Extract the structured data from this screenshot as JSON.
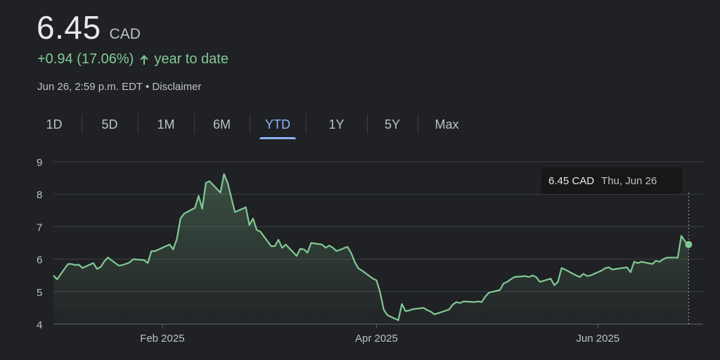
{
  "quote": {
    "price": "6.45",
    "currency": "CAD",
    "change": "+0.94 (17.06%)",
    "period_label": "year to date",
    "timestamp": "Jun 26, 2:59 p.m. EDT",
    "separator": "•",
    "disclaimer": "Disclaimer"
  },
  "tabs": [
    {
      "label": "1D"
    },
    {
      "label": "5D"
    },
    {
      "label": "1M"
    },
    {
      "label": "6M"
    },
    {
      "label": "YTD",
      "active": true
    },
    {
      "label": "1Y"
    },
    {
      "label": "5Y"
    },
    {
      "label": "Max"
    }
  ],
  "tooltip": {
    "value": "6.45 CAD",
    "date": "Thu, Jun 26"
  },
  "colors": {
    "background": "#202124",
    "line": "#81c995",
    "positive": "#81c995",
    "grid": "#3c4043",
    "active_tab": "#8ab4f8"
  },
  "chart_data": {
    "type": "area",
    "title": "",
    "xlabel": "",
    "ylabel": "",
    "ylim": [
      4,
      9
    ],
    "yticks": [
      4,
      5,
      6,
      7,
      8,
      9
    ],
    "x_domain": [
      "2025-01-02",
      "2025-06-30"
    ],
    "xticks": [
      {
        "label": "Feb 2025",
        "date": "2025-02-01"
      },
      {
        "label": "Apr 2025",
        "date": "2025-04-01"
      },
      {
        "label": "Jun 2025",
        "date": "2025-06-01"
      }
    ],
    "grid": true,
    "highlight": {
      "date": "2025-06-26",
      "value": 6.45
    },
    "series": [
      {
        "points": [
          [
            "2025-01-02",
            5.5
          ],
          [
            "2025-01-03",
            5.38
          ],
          [
            "2025-01-06",
            5.85
          ],
          [
            "2025-01-07",
            5.85
          ],
          [
            "2025-01-08",
            5.82
          ],
          [
            "2025-01-09",
            5.83
          ],
          [
            "2025-01-10",
            5.73
          ],
          [
            "2025-01-13",
            5.88
          ],
          [
            "2025-01-14",
            5.7
          ],
          [
            "2025-01-15",
            5.76
          ],
          [
            "2025-01-16",
            5.93
          ],
          [
            "2025-01-17",
            6.05
          ],
          [
            "2025-01-20",
            5.8
          ],
          [
            "2025-01-21",
            5.82
          ],
          [
            "2025-01-22",
            5.86
          ],
          [
            "2025-01-23",
            5.9
          ],
          [
            "2025-01-24",
            6.0
          ],
          [
            "2025-01-27",
            5.97
          ],
          [
            "2025-01-28",
            5.88
          ],
          [
            "2025-01-29",
            6.25
          ],
          [
            "2025-01-30",
            6.25
          ],
          [
            "2025-01-31",
            6.3
          ],
          [
            "2025-02-03",
            6.45
          ],
          [
            "2025-02-04",
            6.3
          ],
          [
            "2025-02-05",
            6.62
          ],
          [
            "2025-02-06",
            7.25
          ],
          [
            "2025-02-07",
            7.4
          ],
          [
            "2025-02-10",
            7.58
          ],
          [
            "2025-02-11",
            7.95
          ],
          [
            "2025-02-12",
            7.55
          ],
          [
            "2025-02-13",
            8.35
          ],
          [
            "2025-02-14",
            8.4
          ],
          [
            "2025-02-17",
            8.05
          ],
          [
            "2025-02-18",
            8.62
          ],
          [
            "2025-02-19",
            8.35
          ],
          [
            "2025-02-20",
            7.9
          ],
          [
            "2025-02-21",
            7.45
          ],
          [
            "2025-02-24",
            7.6
          ],
          [
            "2025-02-25",
            7.05
          ],
          [
            "2025-02-26",
            7.25
          ],
          [
            "2025-02-27",
            6.9
          ],
          [
            "2025-02-28",
            6.85
          ],
          [
            "2025-03-03",
            6.4
          ],
          [
            "2025-03-04",
            6.4
          ],
          [
            "2025-03-05",
            6.6
          ],
          [
            "2025-03-06",
            6.35
          ],
          [
            "2025-03-07",
            6.45
          ],
          [
            "2025-03-10",
            6.1
          ],
          [
            "2025-03-11",
            6.32
          ],
          [
            "2025-03-12",
            6.3
          ],
          [
            "2025-03-13",
            6.2
          ],
          [
            "2025-03-14",
            6.5
          ],
          [
            "2025-03-17",
            6.45
          ],
          [
            "2025-03-18",
            6.35
          ],
          [
            "2025-03-19",
            6.42
          ],
          [
            "2025-03-20",
            6.35
          ],
          [
            "2025-03-21",
            6.25
          ],
          [
            "2025-03-24",
            6.38
          ],
          [
            "2025-03-25",
            6.2
          ],
          [
            "2025-03-26",
            5.92
          ],
          [
            "2025-03-27",
            5.72
          ],
          [
            "2025-03-28",
            5.65
          ],
          [
            "2025-03-31",
            5.4
          ],
          [
            "2025-04-01",
            5.35
          ],
          [
            "2025-04-02",
            4.98
          ],
          [
            "2025-04-03",
            4.45
          ],
          [
            "2025-04-04",
            4.28
          ],
          [
            "2025-04-07",
            4.12
          ],
          [
            "2025-04-08",
            4.62
          ],
          [
            "2025-04-09",
            4.4
          ],
          [
            "2025-04-10",
            4.42
          ],
          [
            "2025-04-11",
            4.46
          ],
          [
            "2025-04-14",
            4.5
          ],
          [
            "2025-04-15",
            4.43
          ],
          [
            "2025-04-16",
            4.38
          ],
          [
            "2025-04-17",
            4.3
          ],
          [
            "2025-04-21",
            4.45
          ],
          [
            "2025-04-22",
            4.6
          ],
          [
            "2025-04-23",
            4.68
          ],
          [
            "2025-04-24",
            4.65
          ],
          [
            "2025-04-25",
            4.7
          ],
          [
            "2025-04-28",
            4.68
          ],
          [
            "2025-04-29",
            4.7
          ],
          [
            "2025-04-30",
            4.68
          ],
          [
            "2025-05-01",
            4.85
          ],
          [
            "2025-05-02",
            4.97
          ],
          [
            "2025-05-05",
            5.05
          ],
          [
            "2025-05-06",
            5.25
          ],
          [
            "2025-05-07",
            5.3
          ],
          [
            "2025-05-08",
            5.38
          ],
          [
            "2025-05-09",
            5.45
          ],
          [
            "2025-05-12",
            5.48
          ],
          [
            "2025-05-13",
            5.45
          ],
          [
            "2025-05-14",
            5.5
          ],
          [
            "2025-05-15",
            5.45
          ],
          [
            "2025-05-16",
            5.3
          ],
          [
            "2025-05-19",
            5.4
          ],
          [
            "2025-05-20",
            5.2
          ],
          [
            "2025-05-21",
            5.3
          ],
          [
            "2025-05-22",
            5.73
          ],
          [
            "2025-05-23",
            5.68
          ],
          [
            "2025-05-26",
            5.5
          ],
          [
            "2025-05-27",
            5.45
          ],
          [
            "2025-05-28",
            5.55
          ],
          [
            "2025-05-29",
            5.48
          ],
          [
            "2025-05-30",
            5.5
          ],
          [
            "2025-06-02",
            5.65
          ],
          [
            "2025-06-03",
            5.72
          ],
          [
            "2025-06-04",
            5.75
          ],
          [
            "2025-06-05",
            5.68
          ],
          [
            "2025-06-06",
            5.7
          ],
          [
            "2025-06-09",
            5.75
          ],
          [
            "2025-06-10",
            5.6
          ],
          [
            "2025-06-11",
            5.92
          ],
          [
            "2025-06-12",
            5.88
          ],
          [
            "2025-06-13",
            5.92
          ],
          [
            "2025-06-16",
            5.85
          ],
          [
            "2025-06-17",
            5.95
          ],
          [
            "2025-06-18",
            5.92
          ],
          [
            "2025-06-19",
            6.0
          ],
          [
            "2025-06-20",
            6.05
          ],
          [
            "2025-06-23",
            6.05
          ],
          [
            "2025-06-24",
            6.72
          ],
          [
            "2025-06-25",
            6.55
          ],
          [
            "2025-06-26",
            6.45
          ]
        ]
      }
    ]
  }
}
